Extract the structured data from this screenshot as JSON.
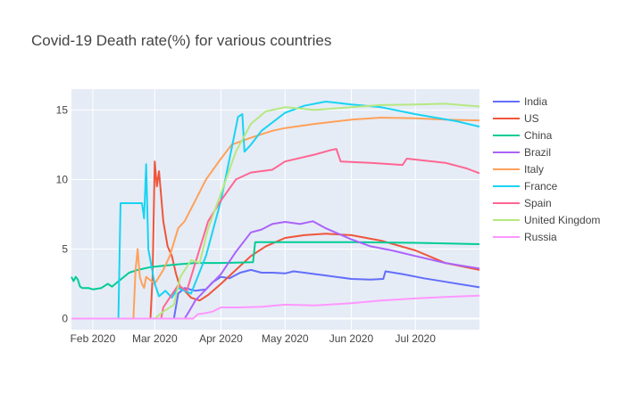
{
  "chart_data": {
    "type": "line",
    "title": "Covid-19 Death rate(%) for various countries",
    "xlabel": "",
    "ylabel": "",
    "x_range": [
      "2020-01-22",
      "2020-07-31"
    ],
    "ylim": [
      -0.8,
      16.5
    ],
    "x_ticks": [
      {
        "date": "2020-02-01",
        "label": "Feb 2020"
      },
      {
        "date": "2020-03-01",
        "label": "Mar 2020"
      },
      {
        "date": "2020-04-01",
        "label": "Apr 2020"
      },
      {
        "date": "2020-05-01",
        "label": "May 2020"
      },
      {
        "date": "2020-06-01",
        "label": "Jun 2020"
      },
      {
        "date": "2020-07-01",
        "label": "Jul 2020"
      }
    ],
    "y_ticks": [
      0,
      5,
      10,
      15
    ],
    "grid": true,
    "legend_position": "right",
    "series": [
      {
        "name": "India",
        "color": "#636efa",
        "points": [
          [
            "2020-01-22",
            0
          ],
          [
            "2020-03-10",
            0
          ],
          [
            "2020-03-12",
            1.8
          ],
          [
            "2020-03-15",
            2.2
          ],
          [
            "2020-03-20",
            2.0
          ],
          [
            "2020-03-25",
            2.1
          ],
          [
            "2020-03-28",
            2.6
          ],
          [
            "2020-04-01",
            3.0
          ],
          [
            "2020-04-05",
            2.9
          ],
          [
            "2020-04-10",
            3.3
          ],
          [
            "2020-04-15",
            3.5
          ],
          [
            "2020-04-20",
            3.3
          ],
          [
            "2020-04-25",
            3.3
          ],
          [
            "2020-05-01",
            3.25
          ],
          [
            "2020-05-05",
            3.4
          ],
          [
            "2020-05-10",
            3.3
          ],
          [
            "2020-05-15",
            3.2
          ],
          [
            "2020-05-20",
            3.1
          ],
          [
            "2020-06-01",
            2.85
          ],
          [
            "2020-06-10",
            2.8
          ],
          [
            "2020-06-16",
            2.85
          ],
          [
            "2020-06-17",
            3.4
          ],
          [
            "2020-06-25",
            3.2
          ],
          [
            "2020-07-05",
            2.9
          ],
          [
            "2020-07-15",
            2.65
          ],
          [
            "2020-07-31",
            2.25
          ]
        ]
      },
      {
        "name": "US",
        "color": "#ef553b",
        "points": [
          [
            "2020-01-22",
            0
          ],
          [
            "2020-02-28",
            0
          ],
          [
            "2020-02-29",
            3.0
          ],
          [
            "2020-03-01",
            11.3
          ],
          [
            "2020-03-02",
            9.5
          ],
          [
            "2020-03-03",
            10.6
          ],
          [
            "2020-03-05",
            7.0
          ],
          [
            "2020-03-07",
            5.2
          ],
          [
            "2020-03-09",
            4.5
          ],
          [
            "2020-03-11",
            3.2
          ],
          [
            "2020-03-13",
            2.2
          ],
          [
            "2020-03-15",
            2.0
          ],
          [
            "2020-03-18",
            1.5
          ],
          [
            "2020-03-22",
            1.3
          ],
          [
            "2020-03-26",
            1.7
          ],
          [
            "2020-04-01",
            2.5
          ],
          [
            "2020-04-08",
            3.5
          ],
          [
            "2020-04-15",
            4.5
          ],
          [
            "2020-04-22",
            5.2
          ],
          [
            "2020-05-01",
            5.8
          ],
          [
            "2020-05-10",
            6.0
          ],
          [
            "2020-05-20",
            6.1
          ],
          [
            "2020-06-01",
            6.0
          ],
          [
            "2020-06-15",
            5.6
          ],
          [
            "2020-07-01",
            4.9
          ],
          [
            "2020-07-15",
            4.0
          ],
          [
            "2020-07-31",
            3.5
          ]
        ]
      },
      {
        "name": "China",
        "color": "#00cc96",
        "points": [
          [
            "2020-01-22",
            3.0
          ],
          [
            "2020-01-23",
            2.7
          ],
          [
            "2020-01-24",
            3.0
          ],
          [
            "2020-01-25",
            2.8
          ],
          [
            "2020-01-26",
            2.3
          ],
          [
            "2020-01-27",
            2.2
          ],
          [
            "2020-01-30",
            2.2
          ],
          [
            "2020-02-01",
            2.1
          ],
          [
            "2020-02-05",
            2.2
          ],
          [
            "2020-02-08",
            2.5
          ],
          [
            "2020-02-10",
            2.3
          ],
          [
            "2020-02-14",
            2.8
          ],
          [
            "2020-02-18",
            3.3
          ],
          [
            "2020-02-22",
            3.5
          ],
          [
            "2020-02-28",
            3.7
          ],
          [
            "2020-03-05",
            3.8
          ],
          [
            "2020-03-12",
            3.9
          ],
          [
            "2020-03-20",
            4.0
          ],
          [
            "2020-04-01",
            4.0
          ],
          [
            "2020-04-16",
            4.05
          ],
          [
            "2020-04-17",
            5.5
          ],
          [
            "2020-05-01",
            5.5
          ],
          [
            "2020-06-01",
            5.5
          ],
          [
            "2020-07-01",
            5.45
          ],
          [
            "2020-07-31",
            5.35
          ]
        ]
      },
      {
        "name": "Brazil",
        "color": "#ab63fa",
        "points": [
          [
            "2020-01-22",
            0
          ],
          [
            "2020-03-15",
            0
          ],
          [
            "2020-03-17",
            0.5
          ],
          [
            "2020-03-20",
            1.3
          ],
          [
            "2020-03-25",
            2.1
          ],
          [
            "2020-04-01",
            3.2
          ],
          [
            "2020-04-08",
            4.8
          ],
          [
            "2020-04-15",
            6.2
          ],
          [
            "2020-04-20",
            6.4
          ],
          [
            "2020-04-25",
            6.8
          ],
          [
            "2020-05-01",
            6.95
          ],
          [
            "2020-05-08",
            6.8
          ],
          [
            "2020-05-14",
            7.0
          ],
          [
            "2020-05-20",
            6.5
          ],
          [
            "2020-06-01",
            5.7
          ],
          [
            "2020-06-10",
            5.2
          ],
          [
            "2020-06-20",
            4.9
          ],
          [
            "2020-07-01",
            4.5
          ],
          [
            "2020-07-15",
            4.0
          ],
          [
            "2020-07-31",
            3.6
          ]
        ]
      },
      {
        "name": "Italy",
        "color": "#ffa15a",
        "points": [
          [
            "2020-01-22",
            0
          ],
          [
            "2020-02-20",
            0
          ],
          [
            "2020-02-21",
            3.5
          ],
          [
            "2020-02-22",
            5.0
          ],
          [
            "2020-02-23",
            3.0
          ],
          [
            "2020-02-24",
            2.5
          ],
          [
            "2020-02-25",
            2.2
          ],
          [
            "2020-02-26",
            3.0
          ],
          [
            "2020-03-01",
            2.5
          ],
          [
            "2020-03-05",
            3.5
          ],
          [
            "2020-03-08",
            4.5
          ],
          [
            "2020-03-12",
            6.5
          ],
          [
            "2020-03-15",
            7.0
          ],
          [
            "2020-03-20",
            8.5
          ],
          [
            "2020-03-25",
            10.0
          ],
          [
            "2020-04-01",
            11.5
          ],
          [
            "2020-04-06",
            12.5
          ],
          [
            "2020-04-15",
            13.0
          ],
          [
            "2020-04-25",
            13.5
          ],
          [
            "2020-05-01",
            13.7
          ],
          [
            "2020-05-15",
            14.0
          ],
          [
            "2020-06-01",
            14.3
          ],
          [
            "2020-06-15",
            14.45
          ],
          [
            "2020-07-01",
            14.4
          ],
          [
            "2020-07-15",
            14.3
          ],
          [
            "2020-07-31",
            14.25
          ]
        ]
      },
      {
        "name": "France",
        "color": "#19d3f3",
        "points": [
          [
            "2020-01-22",
            0
          ],
          [
            "2020-02-13",
            0
          ],
          [
            "2020-02-14",
            8.3
          ],
          [
            "2020-02-24",
            8.3
          ],
          [
            "2020-02-25",
            7.2
          ],
          [
            "2020-02-26",
            11.1
          ],
          [
            "2020-02-27",
            5.0
          ],
          [
            "2020-03-01",
            2.5
          ],
          [
            "2020-03-03",
            1.6
          ],
          [
            "2020-03-06",
            2.0
          ],
          [
            "2020-03-09",
            1.5
          ],
          [
            "2020-03-12",
            2.2
          ],
          [
            "2020-03-18",
            1.8
          ],
          [
            "2020-03-25",
            4.5
          ],
          [
            "2020-04-01",
            8.5
          ],
          [
            "2020-04-05",
            11.5
          ],
          [
            "2020-04-09",
            14.5
          ],
          [
            "2020-04-11",
            14.7
          ],
          [
            "2020-04-12",
            12.0
          ],
          [
            "2020-04-15",
            12.5
          ],
          [
            "2020-04-20",
            13.5
          ],
          [
            "2020-05-01",
            14.8
          ],
          [
            "2020-05-10",
            15.3
          ],
          [
            "2020-05-20",
            15.6
          ],
          [
            "2020-06-01",
            15.4
          ],
          [
            "2020-06-15",
            15.2
          ],
          [
            "2020-07-01",
            14.7
          ],
          [
            "2020-07-20",
            14.2
          ],
          [
            "2020-07-31",
            13.8
          ]
        ]
      },
      {
        "name": "Spain",
        "color": "#ff6692",
        "points": [
          [
            "2020-01-22",
            0
          ],
          [
            "2020-03-04",
            0
          ],
          [
            "2020-03-05",
            0.8
          ],
          [
            "2020-03-08",
            1.5
          ],
          [
            "2020-03-12",
            2.4
          ],
          [
            "2020-03-16",
            2.0
          ],
          [
            "2020-03-20",
            4.0
          ],
          [
            "2020-03-26",
            7.0
          ],
          [
            "2020-04-01",
            8.5
          ],
          [
            "2020-04-08",
            10.0
          ],
          [
            "2020-04-15",
            10.5
          ],
          [
            "2020-04-25",
            10.7
          ],
          [
            "2020-05-01",
            11.3
          ],
          [
            "2020-05-15",
            11.8
          ],
          [
            "2020-05-22",
            12.1
          ],
          [
            "2020-05-25",
            12.2
          ],
          [
            "2020-05-27",
            11.3
          ],
          [
            "2020-06-10",
            11.2
          ],
          [
            "2020-06-25",
            11.05
          ],
          [
            "2020-06-27",
            11.5
          ],
          [
            "2020-07-15",
            11.2
          ],
          [
            "2020-07-25",
            10.8
          ],
          [
            "2020-07-31",
            10.45
          ]
        ]
      },
      {
        "name": "United Kingdom",
        "color": "#b6e880",
        "points": [
          [
            "2020-01-22",
            0
          ],
          [
            "2020-03-01",
            0
          ],
          [
            "2020-03-05",
            0.5
          ],
          [
            "2020-03-10",
            1.0
          ],
          [
            "2020-03-13",
            3.0
          ],
          [
            "2020-03-18",
            4.2
          ],
          [
            "2020-03-22",
            4.0
          ],
          [
            "2020-03-26",
            6.5
          ],
          [
            "2020-04-01",
            9.0
          ],
          [
            "2020-04-08",
            12.0
          ],
          [
            "2020-04-15",
            14.0
          ],
          [
            "2020-04-22",
            14.9
          ],
          [
            "2020-05-01",
            15.2
          ],
          [
            "2020-05-15",
            15.0
          ],
          [
            "2020-06-01",
            15.2
          ],
          [
            "2020-06-15",
            15.35
          ],
          [
            "2020-07-01",
            15.4
          ],
          [
            "2020-07-15",
            15.45
          ],
          [
            "2020-07-31",
            15.25
          ]
        ]
      },
      {
        "name": "Russia",
        "color": "#ff97ff",
        "points": [
          [
            "2020-01-22",
            0
          ],
          [
            "2020-03-19",
            0
          ],
          [
            "2020-03-21",
            0.3
          ],
          [
            "2020-03-25",
            0.4
          ],
          [
            "2020-03-28",
            0.5
          ],
          [
            "2020-04-01",
            0.8
          ],
          [
            "2020-04-10",
            0.8
          ],
          [
            "2020-04-20",
            0.85
          ],
          [
            "2020-05-01",
            1.0
          ],
          [
            "2020-05-15",
            0.95
          ],
          [
            "2020-06-01",
            1.1
          ],
          [
            "2020-06-15",
            1.3
          ],
          [
            "2020-07-01",
            1.45
          ],
          [
            "2020-07-15",
            1.55
          ],
          [
            "2020-07-31",
            1.65
          ]
        ]
      }
    ]
  }
}
